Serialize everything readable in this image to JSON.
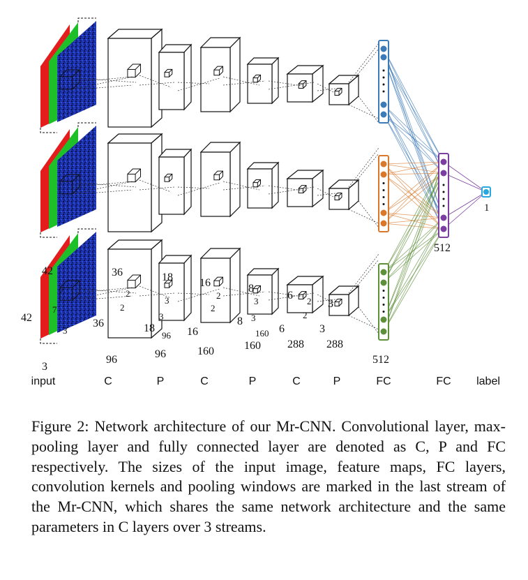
{
  "figure": {
    "dimension_labels": {
      "input_h": "42",
      "input_w": "42",
      "input_c": "3",
      "input_kernel_a": "7",
      "input_kernel_b": "7",
      "input_kernel_c": "3",
      "c1_h": "36",
      "c1_w": "36",
      "c1_d": "96",
      "c1_kernel_a": "2",
      "c1_kernel_b": "2",
      "p1_h": "18",
      "p1_w": "18",
      "p1_d": "96",
      "p1_kernel_a": "3",
      "p1_kernel_b": "3",
      "p1_kernel_c": "96",
      "c2_h": "16",
      "c2_w": "16",
      "c2_d": "160",
      "c2_kernel_a": "2",
      "c2_kernel_b": "2",
      "p2_h": "8",
      "p2_w": "8",
      "p2_d": "160",
      "p2_kernel_a": "3",
      "p2_kernel_b": "3",
      "p2_kernel_c": "160",
      "c3_h": "6",
      "c3_w": "6",
      "c3_d": "288",
      "c3_kernel_a": "2",
      "c3_kernel_b": "2",
      "p3_h": "3",
      "p3_w": "3",
      "p3_d": "288",
      "fc1_size": "512",
      "fc2_size": "512",
      "output_size": "1"
    },
    "layer_labels": [
      "input",
      "C",
      "P",
      "C",
      "P",
      "C",
      "P",
      "FC",
      "FC",
      "label"
    ],
    "colors": {
      "stream1_fc": "#3d7ab8",
      "stream2_fc": "#d9782b",
      "stream3_fc": "#5e8f3a",
      "fc_shared": "#7a3fa0",
      "output": "#29a8e0",
      "input_red": "#e51c1c",
      "input_green": "#1fbf2a",
      "input_blue": "#1a2fa8"
    }
  },
  "caption": "Figure 2: Network architecture of our Mr-CNN. Convolutional layer, max-pooling layer and fully connected layer are denoted as C, P and FC respectively. The sizes of the input image, feature maps, FC layers, convolution kernels and pooling windows are marked in the last stream of the Mr-CNN, which shares the same network architecture and the same parameters in C layers over 3 streams."
}
